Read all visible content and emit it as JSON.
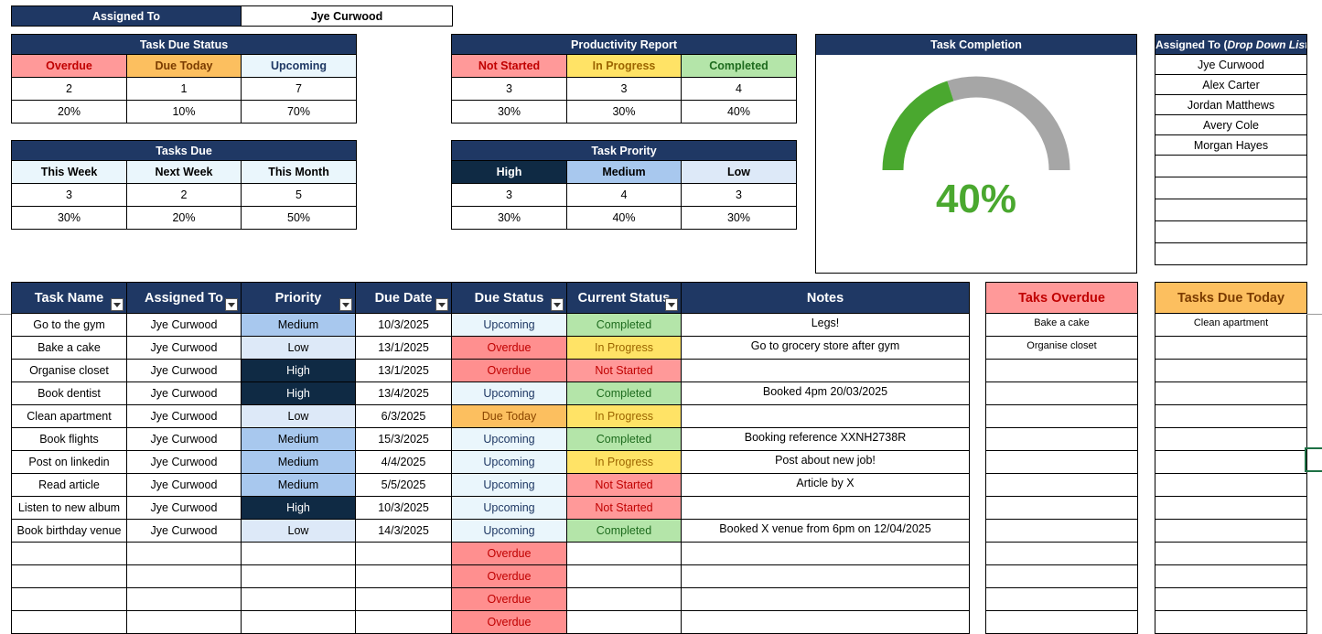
{
  "assigned": {
    "label": "Assigned To",
    "value": "Jye Curwood"
  },
  "task_due_status": {
    "title": "Task Due Status",
    "headers": [
      "Overdue",
      "Due Today",
      "Upcoming"
    ],
    "counts": [
      "2",
      "1",
      "7"
    ],
    "percents": [
      "20%",
      "10%",
      "70%"
    ]
  },
  "productivity": {
    "title": "Productivity Report",
    "headers": [
      "Not Started",
      "In Progress",
      "Completed"
    ],
    "counts": [
      "3",
      "3",
      "4"
    ],
    "percents": [
      "30%",
      "30%",
      "40%"
    ]
  },
  "tasks_due": {
    "title": "Tasks Due",
    "headers": [
      "This Week",
      "Next Week",
      "This Month"
    ],
    "counts": [
      "3",
      "2",
      "5"
    ],
    "percents": [
      "30%",
      "20%",
      "50%"
    ]
  },
  "priority": {
    "title": "Task Prority",
    "headers": [
      "High",
      "Medium",
      "Low"
    ],
    "counts": [
      "3",
      "4",
      "3"
    ],
    "percents": [
      "30%",
      "40%",
      "30%"
    ]
  },
  "completion": {
    "title": "Task Completion",
    "value": 0.4,
    "label": "40%",
    "fill_color": "#4aa82f",
    "track_color": "#a6a6a6"
  },
  "dropdown": {
    "title_prefix": "Assigned To (",
    "title_italic": "Drop Down List",
    "title_suffix": ")",
    "names": [
      "Jye Curwood",
      "Alex Carter",
      "Jordan Matthews",
      "Avery Cole",
      "Morgan Hayes",
      "",
      "",
      "",
      "",
      ""
    ]
  },
  "task_table": {
    "headers": [
      "Task Name",
      "Assigned To",
      "Priority",
      "Due Date",
      "Due Status",
      "Current Status",
      "Notes"
    ],
    "rows": [
      [
        "Go to the gym",
        "Jye Curwood",
        "Medium",
        "10/3/2025",
        "Upcoming",
        "Completed",
        "Legs!"
      ],
      [
        "Bake a cake",
        "Jye Curwood",
        "Low",
        "13/1/2025",
        "Overdue",
        "In Progress",
        "Go to grocery store after gym"
      ],
      [
        "Organise closet",
        "Jye Curwood",
        "High",
        "13/1/2025",
        "Overdue",
        "Not Started",
        ""
      ],
      [
        "Book dentist",
        "Jye Curwood",
        "High",
        "13/4/2025",
        "Upcoming",
        "Completed",
        "Booked 4pm 20/03/2025"
      ],
      [
        "Clean apartment",
        "Jye Curwood",
        "Low",
        "6/3/2025",
        "Due Today",
        "In Progress",
        ""
      ],
      [
        "Book flights",
        "Jye Curwood",
        "Medium",
        "15/3/2025",
        "Upcoming",
        "Completed",
        "Booking reference XXNH2738R"
      ],
      [
        "Post on linkedin",
        "Jye Curwood",
        "Medium",
        "4/4/2025",
        "Upcoming",
        "In Progress",
        "Post about new job!"
      ],
      [
        "Read article",
        "Jye Curwood",
        "Medium",
        "5/5/2025",
        "Upcoming",
        "Not Started",
        "Article by X"
      ],
      [
        "Listen to new album",
        "Jye Curwood",
        "High",
        "10/3/2025",
        "Upcoming",
        "Not Started",
        ""
      ],
      [
        "Book birthday venue",
        "Jye Curwood",
        "Low",
        "14/3/2025",
        "Upcoming",
        "Completed",
        "Booked X venue from 6pm on 12/04/2025"
      ],
      [
        "",
        "",
        "",
        "",
        "Overdue",
        "",
        ""
      ],
      [
        "",
        "",
        "",
        "",
        "Overdue",
        "",
        ""
      ],
      [
        "",
        "",
        "",
        "",
        "Overdue",
        "",
        ""
      ],
      [
        "",
        "",
        "",
        "",
        "Overdue",
        "",
        ""
      ]
    ]
  },
  "overdue_list": {
    "title": "Taks Overdue",
    "items": [
      "Bake a cake",
      "Organise closet",
      "",
      "",
      "",
      "",
      "",
      "",
      "",
      "",
      "",
      "",
      "",
      ""
    ]
  },
  "today_list": {
    "title": "Tasks Due Today",
    "items": [
      "Clean apartment",
      "",
      "",
      "",
      "",
      "",
      "",
      "",
      "",
      "",
      "",
      "",
      "",
      ""
    ]
  }
}
